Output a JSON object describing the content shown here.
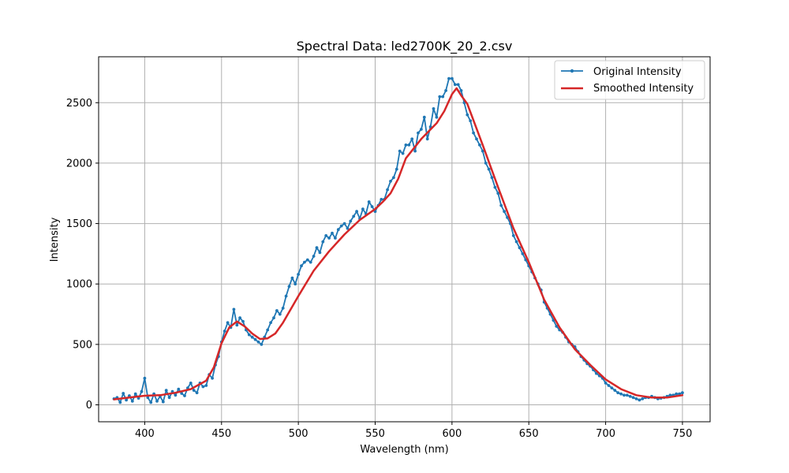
{
  "chart_data": {
    "type": "line",
    "title": "Spectral Data: led2700K_20_2.csv",
    "xlabel": "Wavelength (nm)",
    "ylabel": "Intensity",
    "xlim": [
      370,
      768
    ],
    "ylim": [
      -140,
      2880
    ],
    "xticks": [
      400,
      450,
      500,
      550,
      600,
      650,
      700,
      750
    ],
    "yticks": [
      0,
      500,
      1000,
      1500,
      2000,
      2500
    ],
    "grid": true,
    "legend_position": "top-right",
    "series": [
      {
        "name": "Original Intensity",
        "color": "#1f77b4",
        "marker": "circle",
        "x": [
          380,
          382,
          384,
          386,
          388,
          390,
          392,
          394,
          396,
          398,
          400,
          402,
          404,
          406,
          408,
          410,
          412,
          414,
          416,
          418,
          420,
          422,
          424,
          426,
          428,
          430,
          432,
          434,
          436,
          438,
          440,
          442,
          444,
          446,
          448,
          450,
          452,
          454,
          456,
          458,
          460,
          462,
          464,
          466,
          468,
          470,
          472,
          474,
          476,
          478,
          480,
          482,
          484,
          486,
          488,
          490,
          492,
          494,
          496,
          498,
          500,
          502,
          504,
          506,
          508,
          510,
          512,
          514,
          516,
          518,
          520,
          522,
          524,
          526,
          528,
          530,
          532,
          534,
          536,
          538,
          540,
          542,
          544,
          546,
          548,
          550,
          552,
          554,
          556,
          558,
          560,
          562,
          564,
          566,
          568,
          570,
          572,
          574,
          576,
          578,
          580,
          582,
          584,
          586,
          588,
          590,
          592,
          594,
          596,
          598,
          600,
          602,
          604,
          606,
          608,
          610,
          612,
          614,
          616,
          618,
          620,
          622,
          624,
          626,
          628,
          630,
          632,
          634,
          636,
          638,
          640,
          642,
          644,
          646,
          648,
          650,
          652,
          654,
          656,
          658,
          660,
          662,
          664,
          666,
          668,
          670,
          672,
          674,
          676,
          678,
          680,
          682,
          684,
          686,
          688,
          690,
          692,
          694,
          696,
          698,
          700,
          702,
          704,
          706,
          708,
          710,
          712,
          714,
          716,
          718,
          720,
          722,
          724,
          726,
          728,
          730,
          732,
          734,
          736,
          738,
          740,
          742,
          744,
          746,
          748,
          750
        ],
        "y": [
          50,
          60,
          20,
          95,
          40,
          75,
          30,
          90,
          55,
          110,
          220,
          60,
          20,
          90,
          30,
          70,
          25,
          120,
          60,
          110,
          80,
          130,
          95,
          75,
          140,
          180,
          120,
          100,
          180,
          150,
          160,
          250,
          220,
          330,
          400,
          520,
          610,
          680,
          640,
          790,
          660,
          720,
          690,
          620,
          580,
          560,
          540,
          520,
          500,
          560,
          620,
          680,
          720,
          780,
          750,
          800,
          900,
          980,
          1050,
          1000,
          1080,
          1150,
          1180,
          1200,
          1180,
          1230,
          1300,
          1260,
          1350,
          1400,
          1380,
          1420,
          1380,
          1450,
          1480,
          1500,
          1460,
          1520,
          1560,
          1600,
          1540,
          1620,
          1580,
          1680,
          1640,
          1600,
          1650,
          1700,
          1700,
          1780,
          1850,
          1880,
          1950,
          2100,
          2080,
          2150,
          2150,
          2200,
          2100,
          2250,
          2280,
          2380,
          2200,
          2300,
          2450,
          2380,
          2550,
          2550,
          2600,
          2700,
          2700,
          2650,
          2650,
          2600,
          2500,
          2400,
          2350,
          2250,
          2200,
          2150,
          2100,
          2000,
          1950,
          1880,
          1800,
          1750,
          1650,
          1600,
          1550,
          1500,
          1400,
          1350,
          1300,
          1250,
          1200,
          1150,
          1100,
          1050,
          1000,
          950,
          850,
          800,
          750,
          700,
          650,
          620,
          600,
          560,
          520,
          500,
          480,
          440,
          400,
          370,
          340,
          320,
          290,
          260,
          240,
          220,
          180,
          160,
          140,
          120,
          100,
          90,
          80,
          80,
          70,
          60,
          50,
          40,
          50,
          60,
          60,
          70,
          60,
          50,
          55,
          60,
          70,
          80,
          80,
          90,
          90,
          100
        ]
      },
      {
        "name": "Smoothed Intensity",
        "color": "#d62728",
        "x": [
          380,
          390,
          400,
          410,
          420,
          430,
          440,
          445,
          450,
          455,
          460,
          465,
          470,
          475,
          480,
          485,
          490,
          500,
          510,
          520,
          530,
          540,
          550,
          555,
          560,
          565,
          570,
          580,
          590,
          595,
          600,
          603,
          606,
          610,
          620,
          630,
          640,
          650,
          660,
          670,
          680,
          690,
          700,
          710,
          720,
          730,
          740,
          750
        ],
        "y": [
          45,
          60,
          75,
          80,
          100,
          130,
          200,
          310,
          510,
          640,
          690,
          650,
          590,
          545,
          550,
          590,
          680,
          900,
          1110,
          1270,
          1410,
          1530,
          1620,
          1680,
          1750,
          1870,
          2040,
          2200,
          2330,
          2430,
          2570,
          2620,
          2560,
          2490,
          2150,
          1800,
          1460,
          1180,
          870,
          640,
          460,
          330,
          210,
          130,
          80,
          60,
          60,
          80
        ]
      }
    ]
  }
}
